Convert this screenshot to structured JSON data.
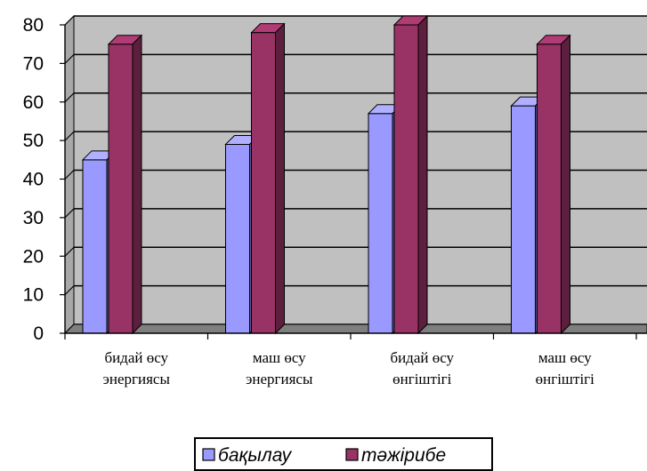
{
  "chart_data": {
    "type": "bar",
    "categories": [
      [
        "бидай өсу",
        "энергиясы"
      ],
      [
        "маш өсу",
        "энергиясы"
      ],
      [
        "бидай өсу",
        "өнгіштігі"
      ],
      [
        "маш өсу",
        "өнгіштігі"
      ]
    ],
    "series": [
      {
        "name": "бақылау",
        "values": [
          45,
          49,
          57,
          59
        ],
        "color": "#9999ff"
      },
      {
        "name": "тәжірибе",
        "values": [
          75,
          78,
          80,
          75
        ],
        "color": "#993366"
      }
    ],
    "yticks": [
      0,
      10,
      20,
      30,
      40,
      50,
      60,
      70,
      80
    ],
    "ylim": [
      0,
      80
    ],
    "grid": true,
    "legend_position": "bottom",
    "plot_background": "#c0c0c0"
  }
}
